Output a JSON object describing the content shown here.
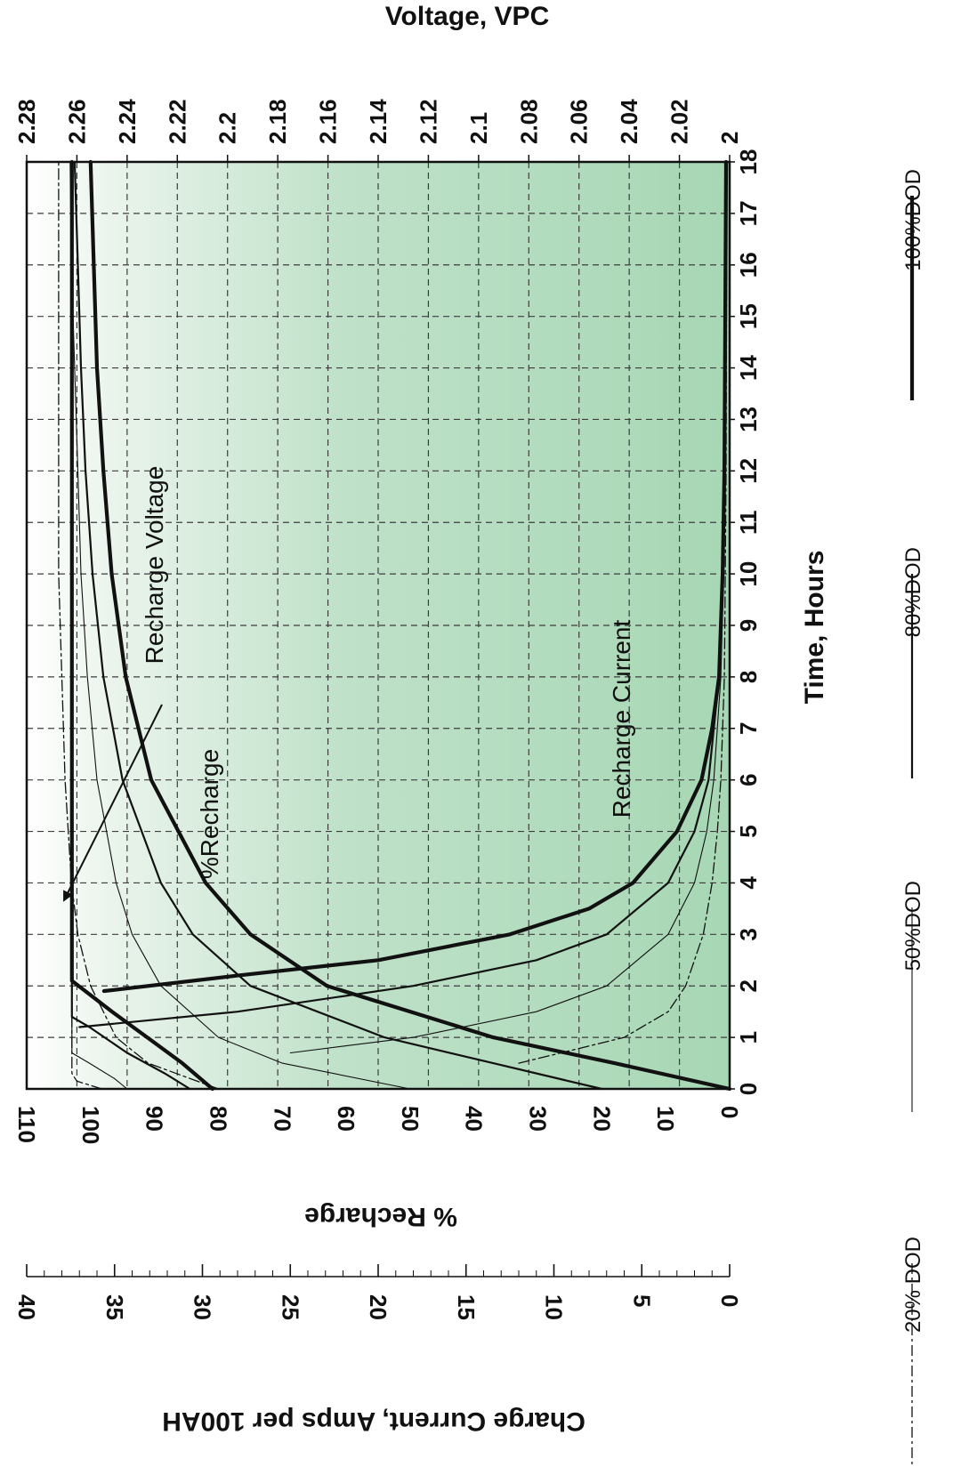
{
  "chart_data": {
    "type": "line",
    "title": "",
    "axes": {
      "time": {
        "label": "Time, Hours",
        "range": [
          0,
          18
        ],
        "ticks": [
          "0",
          "1",
          "2",
          "3",
          "4",
          "5",
          "6",
          "7",
          "8",
          "9",
          "10",
          "11",
          "12",
          "13",
          "14",
          "15",
          "16",
          "17",
          "18"
        ]
      },
      "voltage": {
        "label": "Voltage, VPC",
        "range": [
          2.0,
          2.28
        ],
        "ticks": [
          "2",
          "2.02",
          "2.04",
          "2.06",
          "2.08",
          "2.1",
          "2.12",
          "2.14",
          "2.16",
          "2.18",
          "2.2",
          "2.22",
          "2.24",
          "2.26",
          "2.28"
        ]
      },
      "recharge": {
        "label": "% Recharge",
        "range": [
          0,
          110
        ],
        "ticks": [
          "0",
          "10",
          "20",
          "30",
          "40",
          "50",
          "60",
          "70",
          "80",
          "90",
          "100",
          "110"
        ]
      },
      "current": {
        "label": "Charge Current, Amps per 100AH",
        "range": [
          0,
          40
        ],
        "ticks": [
          "0",
          "5",
          "10",
          "15",
          "20",
          "25",
          "30",
          "35",
          "40"
        ]
      }
    },
    "annotations": {
      "recharge_voltage": "Recharge Voltage",
      "percent_recharge": "%Recharge",
      "recharge_current": "Recharge Current"
    },
    "legend": [
      {
        "name": "20% DOD",
        "style": "dash-dot"
      },
      {
        "name": "50%DOD",
        "style": "thin"
      },
      {
        "name": "80%DOD",
        "style": "medium"
      },
      {
        "name": "100%DOD",
        "style": "thick"
      }
    ],
    "series": [
      {
        "name": "20% DOD",
        "group": "voltage",
        "scale": "VPC",
        "x": [
          0,
          0.15,
          0.3,
          0.5,
          1,
          2,
          4,
          6,
          8,
          10,
          12,
          14,
          16,
          18
        ],
        "y": [
          2.25,
          2.26,
          2.262,
          2.262,
          2.262,
          2.262,
          2.262,
          2.262,
          2.262,
          2.262,
          2.262,
          2.262,
          2.262,
          2.262
        ]
      },
      {
        "name": "50%DOD",
        "group": "voltage",
        "scale": "VPC",
        "x": [
          0,
          0.2,
          0.5,
          0.7,
          1,
          2,
          4,
          6,
          8,
          10,
          12,
          14,
          16,
          18
        ],
        "y": [
          2.24,
          2.245,
          2.255,
          2.262,
          2.262,
          2.262,
          2.262,
          2.262,
          2.262,
          2.262,
          2.262,
          2.262,
          2.262,
          2.262
        ]
      },
      {
        "name": "80%DOD",
        "group": "voltage",
        "scale": "VPC",
        "x": [
          0,
          0.3,
          0.7,
          1.2,
          1.4,
          2,
          4,
          6,
          8,
          10,
          12,
          14,
          16,
          18
        ],
        "y": [
          2.215,
          2.225,
          2.24,
          2.255,
          2.262,
          2.262,
          2.262,
          2.262,
          2.262,
          2.262,
          2.262,
          2.262,
          2.262,
          2.262
        ]
      },
      {
        "name": "100%DOD",
        "group": "voltage",
        "scale": "VPC",
        "x": [
          0,
          0.5,
          1,
          1.5,
          2.1,
          4,
          6,
          8,
          10,
          12,
          14,
          16,
          18
        ],
        "y": [
          2.206,
          2.218,
          2.232,
          2.246,
          2.262,
          2.262,
          2.262,
          2.262,
          2.262,
          2.262,
          2.262,
          2.262,
          2.262
        ]
      },
      {
        "name": "20% DOD",
        "group": "recharge",
        "scale": "%",
        "x": [
          0,
          0.5,
          1,
          2,
          3,
          4,
          6,
          8,
          10,
          12,
          14,
          16,
          18
        ],
        "y": [
          80,
          91,
          96,
          100,
          102,
          103,
          104,
          104.5,
          105,
          105,
          105,
          105,
          105
        ]
      },
      {
        "name": "50%DOD",
        "group": "recharge",
        "scale": "%",
        "x": [
          0,
          0.5,
          1,
          2,
          3,
          4,
          6,
          8,
          10,
          12,
          14,
          16,
          18
        ],
        "y": [
          50,
          70,
          80,
          89,
          93.5,
          96,
          99,
          100.5,
          101.5,
          102,
          102.5,
          103,
          103.2
        ]
      },
      {
        "name": "80%DOD",
        "group": "recharge",
        "scale": "%",
        "x": [
          0,
          0.5,
          1,
          2,
          3,
          4,
          6,
          8,
          10,
          12,
          14,
          16,
          18
        ],
        "y": [
          20,
          37,
          54,
          75,
          84,
          89,
          95,
          98,
          99.7,
          100.8,
          101.5,
          102,
          102.5
        ]
      },
      {
        "name": "100%DOD",
        "group": "recharge",
        "scale": "%",
        "x": [
          0,
          0.5,
          1,
          2,
          3,
          4,
          6,
          8,
          10,
          12,
          14,
          16,
          18
        ],
        "y": [
          0,
          18,
          37,
          63,
          75,
          82,
          90.5,
          94.5,
          96.7,
          98,
          99,
          99.5,
          100
        ]
      },
      {
        "name": "20% DOD",
        "group": "current",
        "scale": "A/100AH",
        "x": [
          0.5,
          1,
          1.5,
          2,
          3,
          4,
          5,
          6,
          8,
          10,
          12,
          18
        ],
        "y": [
          12,
          6,
          3.5,
          2.5,
          1.5,
          1,
          0.7,
          0.5,
          0.3,
          0.25,
          0.2,
          0.15
        ]
      },
      {
        "name": "50%DOD",
        "group": "current",
        "scale": "A/100AH",
        "x": [
          0.7,
          1,
          1.5,
          2,
          3,
          4,
          5,
          6,
          8,
          10,
          12,
          18
        ],
        "y": [
          25,
          18,
          11,
          7,
          3.5,
          2,
          1.3,
          0.9,
          0.5,
          0.35,
          0.3,
          0.2
        ]
      },
      {
        "name": "80%DOD",
        "group": "current",
        "scale": "A/100AH",
        "x": [
          1.2,
          1.5,
          2,
          2.5,
          3,
          4,
          5,
          6,
          8,
          10,
          12,
          18
        ],
        "y": [
          37,
          28,
          18,
          11,
          7,
          3.5,
          2,
          1.2,
          0.6,
          0.4,
          0.3,
          0.2
        ]
      },
      {
        "name": "100%DOD",
        "group": "current",
        "scale": "A/100AH",
        "x": [
          1.9,
          2.2,
          2.5,
          3,
          3.5,
          4,
          5,
          6,
          7,
          8,
          10,
          12,
          18
        ],
        "y": [
          35.6,
          28,
          20,
          12.5,
          8,
          5.5,
          3,
          1.6,
          1,
          0.6,
          0.4,
          0.3,
          0.2
        ]
      }
    ],
    "grid": true
  }
}
